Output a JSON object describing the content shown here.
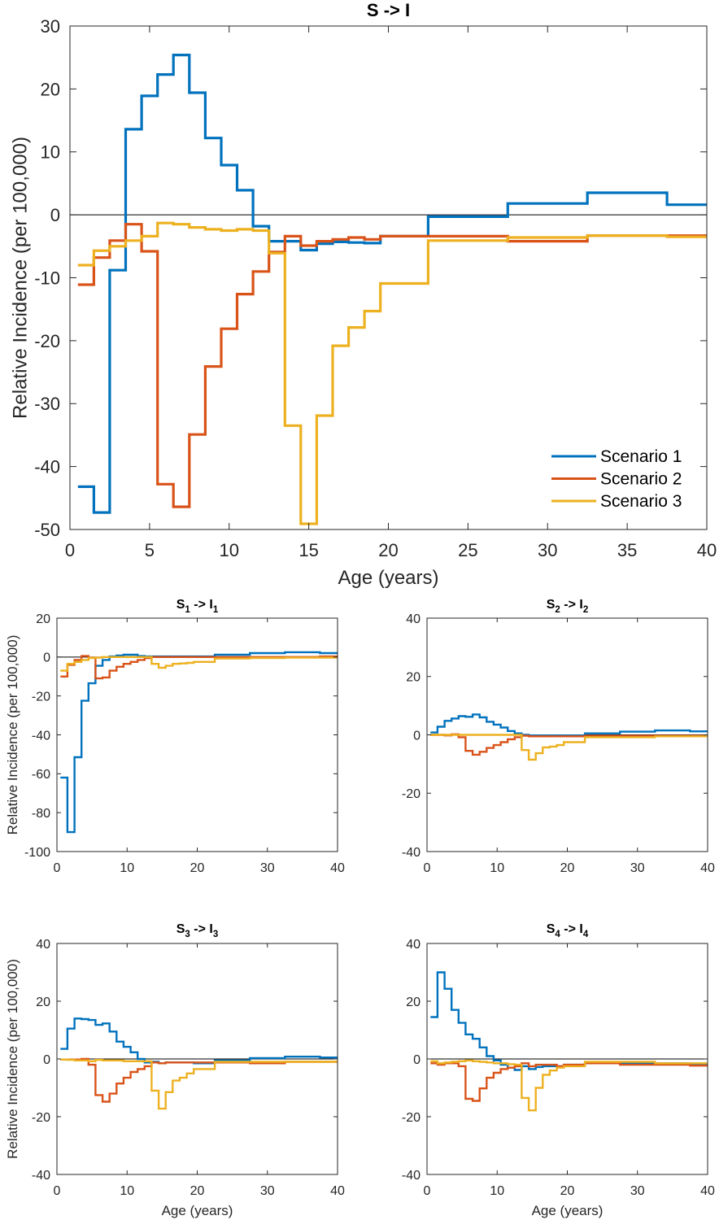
{
  "colors": {
    "scenario1": "#0072BD",
    "scenario2": "#D95319",
    "scenario3": "#EDB120",
    "axis": "#262626",
    "zero_line": "#000000"
  },
  "chart_data": [
    {
      "id": "main",
      "type": "line",
      "step": true,
      "title": "S -> I",
      "xlabel": "Age (years)",
      "ylabel": "Relative Incidence (per 100,000)",
      "xlim": [
        0,
        40
      ],
      "ylim": [
        -50,
        30
      ],
      "xticks": [
        0,
        5,
        10,
        15,
        20,
        25,
        30,
        35,
        40
      ],
      "yticks": [
        -50,
        -40,
        -30,
        -20,
        -10,
        0,
        10,
        20,
        30
      ],
      "grid": false,
      "legend": {
        "placement": "bottom-right",
        "entries": [
          "Scenario 1",
          "Scenario 2",
          "Scenario 3"
        ]
      },
      "bin_edges": [
        0.5,
        1.5,
        2.5,
        3.5,
        4.5,
        5.5,
        6.5,
        7.5,
        8.5,
        9.5,
        10.5,
        11.5,
        12.5,
        13.5,
        14.5,
        15.5,
        16.5,
        17.5,
        18.5,
        19.5,
        22.5,
        27.5,
        32.5,
        37.5,
        40
      ],
      "series": [
        {
          "name": "Scenario 1",
          "values": [
            -43.2,
            -47.3,
            -8.8,
            13.6,
            18.9,
            22.3,
            25.4,
            19.4,
            12.2,
            7.9,
            3.9,
            -1.8,
            -4.2,
            -4.2,
            -5.6,
            -4.6,
            -4.3,
            -4.4,
            -4.5,
            -3.4,
            -0.3,
            1.8,
            3.5,
            1.6
          ]
        },
        {
          "name": "Scenario 2",
          "values": [
            -11.1,
            -6.8,
            -4.1,
            -1.5,
            -5.8,
            -42.8,
            -46.4,
            -34.9,
            -24.1,
            -18.1,
            -12.6,
            -9.0,
            -5.9,
            -3.4,
            -4.9,
            -4.2,
            -3.9,
            -3.6,
            -3.9,
            -3.4,
            -3.4,
            -4.2,
            -3.3,
            -3.3
          ]
        },
        {
          "name": "Scenario 3",
          "values": [
            -8.0,
            -5.7,
            -5.0,
            -4.1,
            -3.4,
            -1.3,
            -1.5,
            -2.0,
            -2.3,
            -2.5,
            -2.3,
            -2.5,
            -6.1,
            -33.5,
            -49.1,
            -31.9,
            -20.8,
            -17.9,
            -15.3,
            -10.9,
            -4.1,
            -3.6,
            -3.3,
            -3.5
          ]
        }
      ]
    },
    {
      "id": "s1",
      "type": "line",
      "step": true,
      "title_main": "S",
      "title_sub1": "1",
      "title_mid": " -> I",
      "title_sub2": "1",
      "xlabel": "",
      "ylabel": "Relative Incidence (per 100,000)",
      "xlim": [
        0,
        40
      ],
      "ylim": [
        -100,
        20
      ],
      "xticks": [
        0,
        10,
        20,
        30,
        40
      ],
      "yticks": [
        -100,
        -80,
        -60,
        -40,
        -20,
        0,
        20
      ],
      "grid": false,
      "bin_edges": [
        0.5,
        1.5,
        2.5,
        3.5,
        4.5,
        5.5,
        6.5,
        7.5,
        8.5,
        9.5,
        10.5,
        11.5,
        12.5,
        13.5,
        14.5,
        15.5,
        16.5,
        17.5,
        18.5,
        19.5,
        22.5,
        27.5,
        32.5,
        37.5,
        40
      ],
      "series": [
        {
          "name": "Scenario 1",
          "values": [
            -62,
            -90,
            -51.5,
            -22.5,
            -13.5,
            -4.5,
            -1.5,
            0.3,
            0.8,
            1.2,
            1.2,
            0.5,
            0.3,
            0.3,
            0.3,
            0.3,
            0.3,
            0.3,
            0.3,
            0.3,
            1.2,
            2.0,
            2.5,
            2.0
          ]
        },
        {
          "name": "Scenario 2",
          "values": [
            -10,
            -4,
            -1.5,
            0.5,
            -0.3,
            -11,
            -10.5,
            -7,
            -5,
            -3.5,
            -2.5,
            -1.5,
            -0.5,
            0,
            0,
            0,
            0,
            0,
            0,
            0,
            0,
            0,
            0,
            0.3
          ]
        },
        {
          "name": "Scenario 3",
          "values": [
            -7,
            -3.5,
            -2.5,
            -1.5,
            -0.5,
            -0.3,
            0,
            0,
            0,
            0,
            0,
            0,
            0,
            -3.5,
            -5.5,
            -4.5,
            -3.5,
            -3.3,
            -3.0,
            -2.5,
            -0.8,
            -0.5,
            -0.3,
            -0.3
          ]
        }
      ]
    },
    {
      "id": "s2",
      "type": "line",
      "step": true,
      "title_main": "S",
      "title_sub1": "2",
      "title_mid": " -> I",
      "title_sub2": "2",
      "xlabel": "",
      "ylabel": "",
      "xlim": [
        0,
        40
      ],
      "ylim": [
        -40,
        40
      ],
      "xticks": [
        0,
        10,
        20,
        30,
        40
      ],
      "yticks": [
        -40,
        -20,
        0,
        20,
        40
      ],
      "grid": false,
      "bin_edges": [
        0.5,
        1.5,
        2.5,
        3.5,
        4.5,
        5.5,
        6.5,
        7.5,
        8.5,
        9.5,
        10.5,
        11.5,
        12.5,
        13.5,
        14.5,
        15.5,
        16.5,
        17.5,
        18.5,
        19.5,
        22.5,
        27.5,
        32.5,
        37.5,
        40
      ],
      "series": [
        {
          "name": "Scenario 1",
          "values": [
            0.8,
            2.8,
            4.8,
            5.6,
            6.4,
            6.2,
            7.0,
            6.0,
            4.5,
            3.5,
            2.5,
            1.3,
            0.5,
            0.0,
            -0.2,
            -0.2,
            -0.2,
            -0.2,
            -0.2,
            -0.2,
            0.5,
            1.1,
            1.5,
            1.2
          ]
        },
        {
          "name": "Scenario 2",
          "values": [
            0,
            0,
            -0.2,
            0.2,
            -0.8,
            -5.5,
            -6.8,
            -5.8,
            -4.5,
            -3.5,
            -2.5,
            -1.5,
            -0.8,
            -0.3,
            -0.5,
            -0.5,
            -0.5,
            -0.5,
            -0.5,
            -0.5,
            -0.3,
            -0.3,
            -0.3,
            -0.3
          ]
        },
        {
          "name": "Scenario 3",
          "values": [
            0,
            0,
            0,
            0,
            0,
            0,
            0,
            0,
            0,
            0,
            0,
            0,
            0,
            -5.2,
            -8.5,
            -6.3,
            -4.3,
            -4.0,
            -3.5,
            -2.5,
            -0.8,
            -0.8,
            -0.5,
            -0.5
          ]
        }
      ]
    },
    {
      "id": "s3",
      "type": "line",
      "step": true,
      "title_main": "S",
      "title_sub1": "3",
      "title_mid": " -> I",
      "title_sub2": "3",
      "xlabel": "Age (years)",
      "ylabel": "Relative Incidence (per 100,000)",
      "xlim": [
        0,
        40
      ],
      "ylim": [
        -40,
        40
      ],
      "xticks": [
        0,
        10,
        20,
        30,
        40
      ],
      "yticks": [
        -40,
        -20,
        0,
        20,
        40
      ],
      "grid": false,
      "bin_edges": [
        0.5,
        1.5,
        2.5,
        3.5,
        4.5,
        5.5,
        6.5,
        7.5,
        8.5,
        9.5,
        10.5,
        11.5,
        12.5,
        13.5,
        14.5,
        15.5,
        16.5,
        17.5,
        18.5,
        19.5,
        22.5,
        27.5,
        32.5,
        37.5,
        40
      ],
      "series": [
        {
          "name": "Scenario 1",
          "values": [
            3.5,
            10.5,
            14.0,
            13.8,
            13.5,
            11.8,
            12.3,
            9.5,
            6.0,
            4.2,
            2.3,
            0.0,
            -1.2,
            -1.0,
            -1.5,
            -1.2,
            -1.2,
            -1.2,
            -1.2,
            -1.5,
            -0.5,
            0.3,
            0.8,
            0.5
          ]
        },
        {
          "name": "Scenario 2",
          "values": [
            -0.2,
            -0.2,
            -0.2,
            0,
            -2,
            -12.5,
            -14.8,
            -12,
            -8.5,
            -6.5,
            -4.5,
            -3.5,
            -2.5,
            -1.2,
            -1.5,
            -1.2,
            -1.2,
            -1.2,
            -1.2,
            -1.2,
            -1.2,
            -1.5,
            -1.0,
            -1.0
          ]
        },
        {
          "name": "Scenario 3",
          "values": [
            -0.2,
            -0.3,
            -0.5,
            -0.5,
            -0.8,
            -0.3,
            -0.5,
            -0.5,
            -0.5,
            -0.8,
            -0.8,
            -0.8,
            -0.8,
            -11,
            -17.2,
            -11.5,
            -7.5,
            -6.5,
            -5.0,
            -3.5,
            -1.0,
            -1.0,
            -1.0,
            -1.0
          ]
        }
      ]
    },
    {
      "id": "s4",
      "type": "line",
      "step": true,
      "title_main": "S",
      "title_sub1": "4",
      "title_mid": " -> I",
      "title_sub2": "4",
      "xlabel": "Age (years)",
      "ylabel": "",
      "xlim": [
        0,
        40
      ],
      "ylim": [
        -40,
        40
      ],
      "xticks": [
        0,
        10,
        20,
        30,
        40
      ],
      "yticks": [
        -40,
        -20,
        0,
        20,
        40
      ],
      "grid": false,
      "bin_edges": [
        0.5,
        1.5,
        2.5,
        3.5,
        4.5,
        5.5,
        6.5,
        7.5,
        8.5,
        9.5,
        10.5,
        11.5,
        12.5,
        13.5,
        14.5,
        15.5,
        16.5,
        17.5,
        18.5,
        19.5,
        22.5,
        27.5,
        32.5,
        37.5,
        40
      ],
      "series": [
        {
          "name": "Scenario 1",
          "values": [
            14.5,
            30.0,
            24.3,
            17.0,
            12.5,
            8.5,
            7.0,
            4.0,
            1.0,
            -0.5,
            -2.0,
            -3.0,
            -3.8,
            -2.5,
            -3.5,
            -2.8,
            -2.5,
            -2.5,
            -2.5,
            -2.0,
            -1.5,
            -1.5,
            -1.5,
            -1.8
          ]
        },
        {
          "name": "Scenario 2",
          "values": [
            -1.5,
            -2.0,
            -1.5,
            -1.5,
            -2.5,
            -13.8,
            -14.5,
            -10.2,
            -6.5,
            -4.8,
            -3.5,
            -3.0,
            -2.5,
            -1.5,
            -2.5,
            -2.0,
            -2.0,
            -2.0,
            -2.5,
            -2.0,
            -1.5,
            -2.0,
            -2.0,
            -2.3
          ]
        },
        {
          "name": "Scenario 3",
          "values": [
            -0.8,
            -1.5,
            -1.2,
            -1.0,
            -0.8,
            -0.5,
            -0.8,
            -1.0,
            -1.2,
            -1.5,
            -1.5,
            -1.8,
            -2.0,
            -13.5,
            -17.8,
            -10.0,
            -5.5,
            -4.0,
            -3.0,
            -2.5,
            -1.0,
            -1.0,
            -1.5,
            -1.5
          ]
        }
      ]
    }
  ]
}
